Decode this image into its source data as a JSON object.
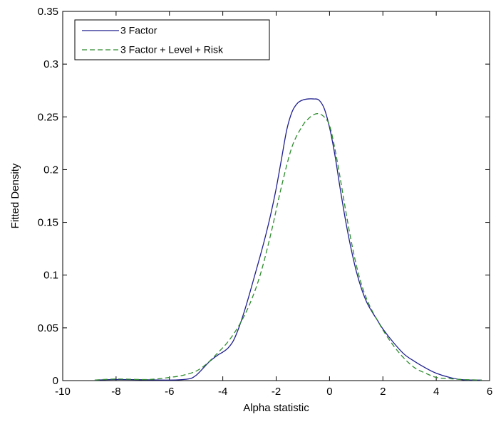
{
  "chart_data": {
    "type": "line",
    "title": "",
    "xlabel": "Alpha statistic",
    "ylabel": "Fitted Density",
    "xlim": [
      -10,
      6
    ],
    "ylim": [
      0,
      0.35
    ],
    "xticks": [
      -10,
      -8,
      -6,
      -4,
      -2,
      0,
      2,
      4,
      6
    ],
    "xtick_labels": [
      "-10",
      "-8",
      "-6",
      "-4",
      "-2",
      "0",
      "2",
      "4",
      "6"
    ],
    "yticks": [
      0,
      0.05,
      0.1,
      0.15,
      0.2,
      0.25,
      0.3,
      0.35
    ],
    "ytick_labels": [
      "0",
      "0.05",
      "0.1",
      "0.15",
      "0.2",
      "0.25",
      "0.3",
      "0.35"
    ],
    "grid": false,
    "legend_position": "top-left",
    "series": [
      {
        "name": "3 Factor",
        "color": "#1f1f8f",
        "dash": "solid",
        "x": [
          -8.8,
          -8.0,
          -7.0,
          -6.0,
          -5.5,
          -5.2,
          -5.0,
          -4.8,
          -4.5,
          -4.2,
          -4.0,
          -3.8,
          -3.6,
          -3.4,
          -3.2,
          -3.0,
          -2.8,
          -2.6,
          -2.4,
          -2.2,
          -2.0,
          -1.8,
          -1.6,
          -1.4,
          -1.2,
          -1.0,
          -0.8,
          -0.6,
          -0.4,
          -0.2,
          0.0,
          0.2,
          0.4,
          0.6,
          0.8,
          1.0,
          1.2,
          1.4,
          1.6,
          1.8,
          2.0,
          2.4,
          2.8,
          3.2,
          3.6,
          4.0,
          4.5,
          5.0,
          5.7
        ],
        "y": [
          0.0005,
          0.001,
          0.0008,
          0.0005,
          0.001,
          0.002,
          0.005,
          0.01,
          0.018,
          0.024,
          0.027,
          0.031,
          0.038,
          0.05,
          0.065,
          0.082,
          0.1,
          0.118,
          0.137,
          0.158,
          0.182,
          0.21,
          0.238,
          0.255,
          0.263,
          0.266,
          0.267,
          0.267,
          0.266,
          0.258,
          0.24,
          0.214,
          0.182,
          0.152,
          0.126,
          0.104,
          0.087,
          0.074,
          0.065,
          0.057,
          0.049,
          0.036,
          0.025,
          0.018,
          0.012,
          0.007,
          0.003,
          0.0008,
          0.0005
        ]
      },
      {
        "name": "3 Factor + Level + Risk",
        "color": "#2e8b2e",
        "dash": "dashed",
        "x": [
          -8.8,
          -8.0,
          -7.0,
          -6.5,
          -6.0,
          -5.5,
          -5.0,
          -4.6,
          -4.2,
          -3.8,
          -3.4,
          -3.0,
          -2.6,
          -2.2,
          -1.8,
          -1.4,
          -1.0,
          -0.8,
          -0.6,
          -0.4,
          -0.2,
          0.0,
          0.2,
          0.4,
          0.6,
          0.8,
          1.0,
          1.2,
          1.4,
          1.6,
          1.8,
          2.0,
          2.4,
          2.8,
          3.2,
          3.6,
          4.0,
          4.4,
          5.0,
          5.7
        ],
        "y": [
          0.0005,
          0.0015,
          0.001,
          0.0015,
          0.003,
          0.005,
          0.009,
          0.016,
          0.026,
          0.037,
          0.052,
          0.072,
          0.1,
          0.139,
          0.184,
          0.222,
          0.242,
          0.248,
          0.252,
          0.253,
          0.25,
          0.242,
          0.22,
          0.192,
          0.162,
          0.134,
          0.11,
          0.091,
          0.077,
          0.066,
          0.057,
          0.048,
          0.033,
          0.021,
          0.012,
          0.007,
          0.003,
          0.002,
          0.001,
          0.0005
        ]
      }
    ]
  }
}
